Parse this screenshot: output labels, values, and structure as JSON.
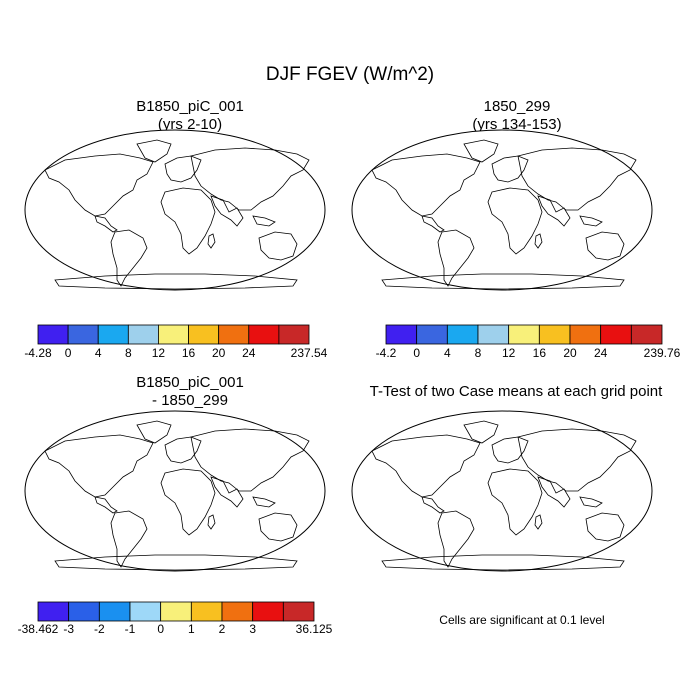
{
  "chart_data": [
    {
      "type": "heatmap",
      "map": "robinson-world",
      "title_line1": "B1850_piC_001",
      "title_line2": "(yrs 2-10)",
      "colorbar": {
        "colors": [
          "#4020f0",
          "#3a66e0",
          "#1aa8f0",
          "#9ed0ec",
          "#f8f07a",
          "#f8c020",
          "#f07010",
          "#e81010",
          "#c82828"
        ],
        "tick_labels": [
          "-4.28",
          "0",
          "4",
          "8",
          "12",
          "16",
          "20",
          "24",
          "237.54"
        ]
      },
      "ocean_color": "#ffffff"
    },
    {
      "type": "heatmap",
      "map": "robinson-world",
      "title_line1": "1850_299",
      "title_line2": "(yrs 134-153)",
      "colorbar": {
        "colors": [
          "#4020f0",
          "#3a66e0",
          "#1aa8f0",
          "#9ed0ec",
          "#f8f07a",
          "#f8c020",
          "#f07010",
          "#e81010",
          "#c82828"
        ],
        "tick_labels": [
          "-4.2",
          "0",
          "4",
          "8",
          "12",
          "16",
          "20",
          "24",
          "239.76"
        ]
      },
      "ocean_color": "#ffffff"
    },
    {
      "type": "heatmap",
      "map": "robinson-world",
      "title_line1": "B1850_piC_001",
      "title_line2": "- 1850_299",
      "colorbar": {
        "colors": [
          "#4020f0",
          "#2a60e8",
          "#1a90f0",
          "#9ed8f8",
          "#f8f07a",
          "#f8c020",
          "#f07010",
          "#e81010",
          "#c82828"
        ],
        "tick_labels": [
          "-38.462",
          "-3",
          "-2",
          "-1",
          "0",
          "1",
          "2",
          "3",
          "36.125"
        ]
      },
      "ocean_color": "#ffffff"
    },
    {
      "type": "heatmap",
      "map": "robinson-world",
      "title_line1": "T-Test of two Case means at each grid point",
      "title_line2": "",
      "significant_color": "#ee0000",
      "note": "Cells are significant at 0.1 level"
    }
  ],
  "main_title": "DJF FGEV (W/m^2)"
}
